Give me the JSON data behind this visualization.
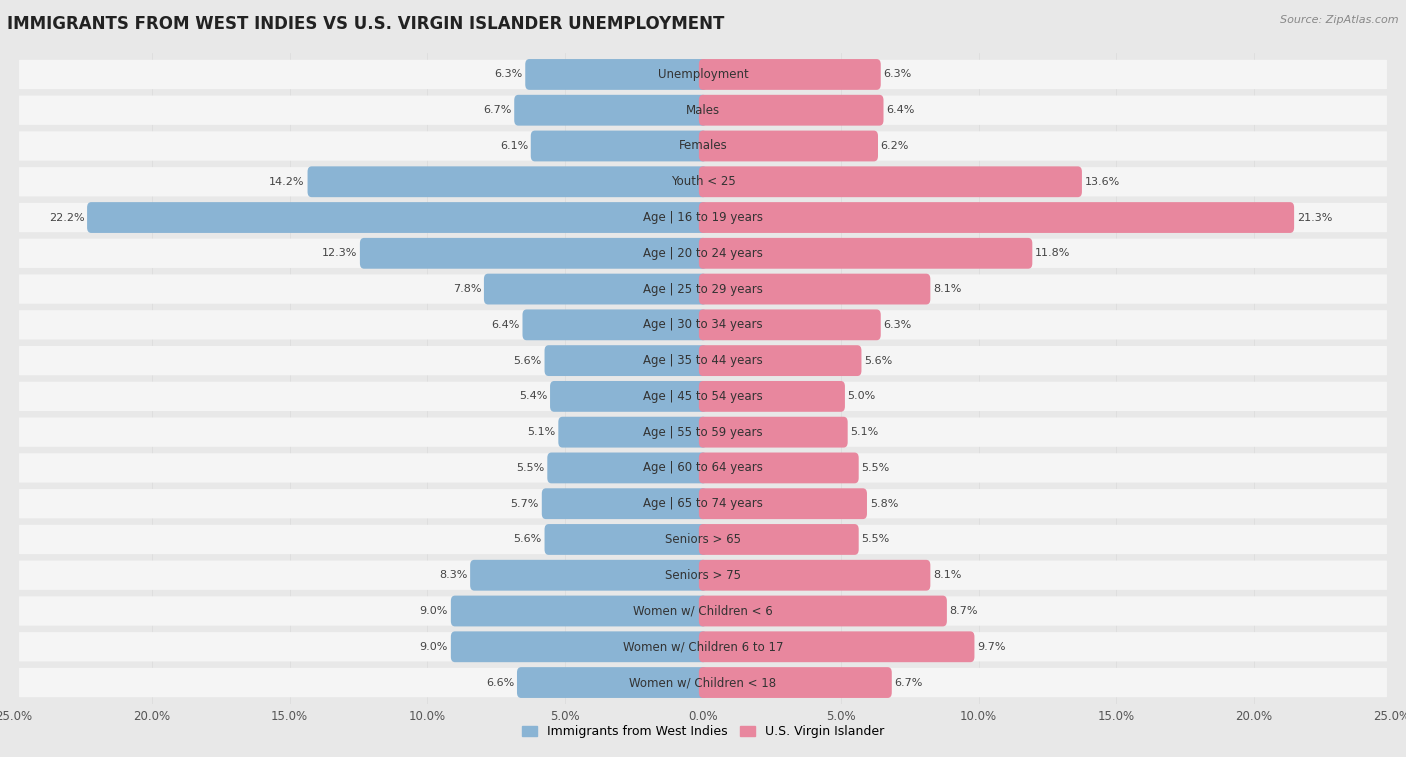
{
  "title": "IMMIGRANTS FROM WEST INDIES VS U.S. VIRGIN ISLANDER UNEMPLOYMENT",
  "source": "Source: ZipAtlas.com",
  "categories": [
    "Unemployment",
    "Males",
    "Females",
    "Youth < 25",
    "Age | 16 to 19 years",
    "Age | 20 to 24 years",
    "Age | 25 to 29 years",
    "Age | 30 to 34 years",
    "Age | 35 to 44 years",
    "Age | 45 to 54 years",
    "Age | 55 to 59 years",
    "Age | 60 to 64 years",
    "Age | 65 to 74 years",
    "Seniors > 65",
    "Seniors > 75",
    "Women w/ Children < 6",
    "Women w/ Children 6 to 17",
    "Women w/ Children < 18"
  ],
  "left_values": [
    6.3,
    6.7,
    6.1,
    14.2,
    22.2,
    12.3,
    7.8,
    6.4,
    5.6,
    5.4,
    5.1,
    5.5,
    5.7,
    5.6,
    8.3,
    9.0,
    9.0,
    6.6
  ],
  "right_values": [
    6.3,
    6.4,
    6.2,
    13.6,
    21.3,
    11.8,
    8.1,
    6.3,
    5.6,
    5.0,
    5.1,
    5.5,
    5.8,
    5.5,
    8.1,
    8.7,
    9.7,
    6.7
  ],
  "left_color": "#8ab4d4",
  "right_color": "#e8879e",
  "left_label": "Immigrants from West Indies",
  "right_label": "U.S. Virgin Islander",
  "xlim": 25.0,
  "background_color": "#e8e8e8",
  "row_bg_color": "#f5f5f5",
  "title_fontsize": 12,
  "label_fontsize": 8.5,
  "value_fontsize": 8.0
}
